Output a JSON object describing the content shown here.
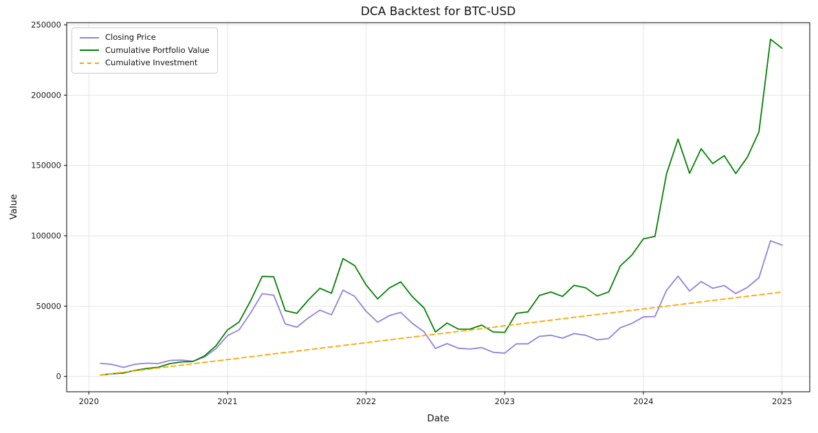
{
  "chart_data": {
    "type": "line",
    "title": "DCA Backtest for BTC-USD",
    "xlabel": "Date",
    "ylabel": "Value",
    "grid": true,
    "legend_position": "upper left",
    "xticks": [
      2020,
      2021,
      2022,
      2023,
      2024,
      2025
    ],
    "yticks": [
      0,
      50000,
      100000,
      150000,
      200000,
      250000
    ],
    "xlim": [
      2019.84,
      2025.2
    ],
    "ylim": [
      -10900,
      251500
    ],
    "dates": [
      "2020-01",
      "2020-02",
      "2020-03",
      "2020-04",
      "2020-05",
      "2020-06",
      "2020-07",
      "2020-08",
      "2020-09",
      "2020-10",
      "2020-11",
      "2020-12",
      "2021-01",
      "2021-02",
      "2021-03",
      "2021-04",
      "2021-05",
      "2021-06",
      "2021-07",
      "2021-08",
      "2021-09",
      "2021-10",
      "2021-11",
      "2021-12",
      "2022-01",
      "2022-02",
      "2022-03",
      "2022-04",
      "2022-05",
      "2022-06",
      "2022-07",
      "2022-08",
      "2022-09",
      "2022-10",
      "2022-11",
      "2022-12",
      "2023-01",
      "2023-02",
      "2023-03",
      "2023-04",
      "2023-05",
      "2023-06",
      "2023-07",
      "2023-08",
      "2023-09",
      "2023-10",
      "2023-11",
      "2023-12",
      "2024-01",
      "2024-02",
      "2024-03",
      "2024-04",
      "2024-05",
      "2024-06",
      "2024-07",
      "2024-08",
      "2024-09",
      "2024-10",
      "2024-11",
      "2024-12"
    ],
    "series": [
      {
        "name": "Closing Price",
        "color": "#9180d9",
        "style": "solid",
        "values": [
          9350,
          8550,
          6450,
          8650,
          9450,
          9150,
          11350,
          11650,
          10800,
          13800,
          19700,
          29000,
          33100,
          45150,
          58800,
          57750,
          37300,
          35050,
          41600,
          47150,
          43800,
          61300,
          57000,
          46300,
          38500,
          43200,
          45550,
          37700,
          31800,
          19950,
          23300,
          20050,
          19450,
          20500,
          17150,
          16550,
          23150,
          23150,
          28500,
          29250,
          27200,
          30450,
          29250,
          26000,
          26950,
          34650,
          37700,
          42250,
          42600,
          61200,
          71300,
          60650,
          67500,
          62700,
          64600,
          58950,
          63300,
          70200,
          96450,
          93400
        ]
      },
      {
        "name": "Cumulative Portfolio Value",
        "color": "#008000",
        "style": "solid",
        "values": [
          1000,
          1915,
          2445,
          4280,
          5680,
          6500,
          9070,
          10310,
          10600,
          14545,
          21760,
          33035,
          38705,
          53790,
          71080,
          70870,
          46740,
          44870,
          54320,
          62650,
          59130,
          83750,
          78880,
          65080,
          55120,
          62850,
          67200,
          56680,
          48810,
          31550,
          37940,
          33570,
          33600,
          36480,
          31610,
          31330,
          44870,
          45870,
          57570,
          59980,
          56870,
          64770,
          63010,
          57110,
          60090,
          78510,
          86290,
          97820,
          99510,
          143960,
          168720,
          144420,
          161860,
          151350,
          156940,
          144260,
          155850,
          173840,
          239720,
          233260
        ]
      },
      {
        "name": "Cumulative Investment",
        "color": "#ffa500",
        "style": "dashed",
        "values": [
          1000,
          2000,
          3000,
          4000,
          5000,
          6000,
          7000,
          8000,
          9000,
          10000,
          11000,
          12000,
          13000,
          14000,
          15000,
          16000,
          17000,
          18000,
          19000,
          20000,
          21000,
          22000,
          23000,
          24000,
          25000,
          26000,
          27000,
          28000,
          29000,
          30000,
          31000,
          32000,
          33000,
          34000,
          35000,
          36000,
          37000,
          38000,
          39000,
          40000,
          41000,
          42000,
          43000,
          44000,
          45000,
          46000,
          47000,
          48000,
          49000,
          50000,
          51000,
          52000,
          53000,
          54000,
          55000,
          56000,
          57000,
          58000,
          59000,
          60000
        ]
      }
    ]
  }
}
